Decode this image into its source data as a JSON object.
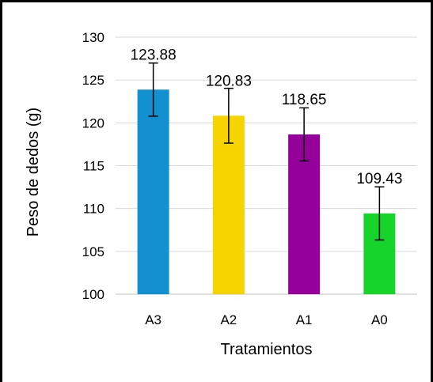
{
  "chart_data": {
    "type": "bar",
    "categories": [
      "A3",
      "A2",
      "A1",
      "A0"
    ],
    "values": [
      123.88,
      120.83,
      118.65,
      109.43
    ],
    "value_labels": [
      "123.88",
      "120.83",
      "118.65",
      "109.43"
    ],
    "error": [
      3.1,
      3.2,
      3.1,
      3.1
    ],
    "colors": [
      "#1390cf",
      "#f6d400",
      "#95009a",
      "#16d42a"
    ],
    "xlabel": "Tratamientos",
    "ylabel": "Peso de dedos (g)",
    "ylim": [
      100,
      130
    ],
    "yticks": [
      100,
      105,
      110,
      115,
      120,
      125,
      130
    ],
    "grid": true
  }
}
